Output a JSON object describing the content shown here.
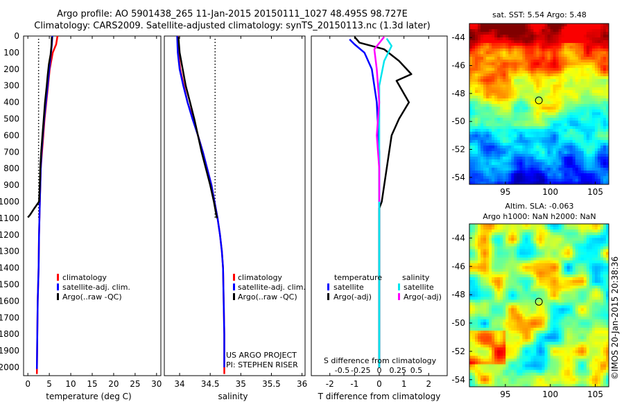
{
  "header": {
    "line1": "Argo profile: AO 5901438_265 11-Jan-2015 20150111_1027 48.495S 98.727E",
    "line2": "Climatology: CARS2009. Satellite-adjusted climatology: synTS_20150113.nc (1.3d later)"
  },
  "credit": "©IMOS 20-Jan-2015 20:38:36",
  "project_note": {
    "line1": "US ARGO PROJECT",
    "line2": "PI: STEPHEN RISER"
  },
  "depth_ticks": [
    0,
    100,
    200,
    300,
    400,
    500,
    600,
    700,
    800,
    900,
    1000,
    1100,
    1200,
    1300,
    1400,
    1500,
    1600,
    1700,
    1800,
    1900,
    2000
  ],
  "colors": {
    "climatology": "#ff0000",
    "satellite": "#0000ff",
    "argo": "#000000",
    "salinity_satellite": "#00e5ee",
    "salinity_argo": "#ff00ff"
  },
  "chart_data": [
    {
      "type": "line",
      "id": "temperature",
      "xlabel": "temperature (deg C)",
      "xlim": [
        -1,
        31
      ],
      "ylim": [
        2050,
        0
      ],
      "xticks": [
        0,
        5,
        10,
        15,
        20,
        25,
        30
      ],
      "xtick_labels": [
        "0",
        "5",
        "10",
        "15",
        "20",
        "25",
        "30"
      ],
      "reference_line": {
        "x": 2.5,
        "style": "dotted"
      },
      "legend": [
        "climatology",
        "satellite-adj. clim.",
        "Argo(..raw -QC)"
      ],
      "series": [
        {
          "name": "climatology",
          "color": "#ff0000",
          "points": [
            [
              6.9,
              0
            ],
            [
              6.6,
              50
            ],
            [
              5.8,
              100
            ],
            [
              5.1,
              200
            ],
            [
              4.7,
              300
            ],
            [
              4.3,
              400
            ],
            [
              3.9,
              500
            ],
            [
              3.6,
              600
            ],
            [
              3.3,
              700
            ],
            [
              3.0,
              800
            ],
            [
              2.8,
              1000
            ],
            [
              2.6,
              1200
            ],
            [
              2.5,
              1400
            ],
            [
              2.3,
              1600
            ],
            [
              2.2,
              1800
            ],
            [
              2.1,
              2040
            ]
          ]
        },
        {
          "name": "satellite-adj. clim.",
          "color": "#0000ff",
          "points": [
            [
              5.7,
              0
            ],
            [
              5.6,
              50
            ],
            [
              5.4,
              100
            ],
            [
              5.0,
              200
            ],
            [
              4.6,
              300
            ],
            [
              4.2,
              400
            ],
            [
              3.8,
              500
            ],
            [
              3.5,
              600
            ],
            [
              3.2,
              700
            ],
            [
              3.0,
              800
            ],
            [
              2.8,
              1000
            ],
            [
              2.6,
              1200
            ],
            [
              2.5,
              1400
            ],
            [
              2.3,
              1600
            ],
            [
              2.2,
              1800
            ],
            [
              2.1,
              2010
            ]
          ]
        },
        {
          "name": "Argo(..raw -QC)",
          "color": "#000000",
          "points": [
            [
              5.6,
              5
            ],
            [
              5.5,
              60
            ],
            [
              5.3,
              110
            ],
            [
              4.9,
              170
            ],
            [
              4.6,
              240
            ],
            [
              4.4,
              300
            ],
            [
              4.0,
              400
            ],
            [
              3.7,
              500
            ],
            [
              3.4,
              600
            ],
            [
              3.1,
              700
            ],
            [
              2.9,
              800
            ],
            [
              2.8,
              900
            ],
            [
              2.6,
              1000
            ],
            [
              1.5,
              1040
            ],
            [
              0.5,
              1080
            ],
            [
              0.0,
              1095
            ]
          ]
        }
      ]
    },
    {
      "type": "line",
      "id": "salinity",
      "xlabel": "salinity",
      "xlim": [
        33.75,
        36.05
      ],
      "ylim": [
        2050,
        0
      ],
      "xticks": [
        34,
        34.5,
        35,
        35.5,
        36
      ],
      "xtick_labels": [
        "34",
        "34.5",
        "35",
        "35.5",
        "36"
      ],
      "reference_line": {
        "x": 34.58,
        "style": "dotted"
      },
      "legend": [
        "climatology",
        "satellite-adj. clim.",
        "Argo(..raw -QC)"
      ],
      "series": [
        {
          "name": "climatology",
          "color": "#ff0000",
          "points": [
            [
              33.97,
              0
            ],
            [
              33.98,
              100
            ],
            [
              34.01,
              200
            ],
            [
              34.07,
              300
            ],
            [
              34.13,
              400
            ],
            [
              34.22,
              500
            ],
            [
              34.3,
              600
            ],
            [
              34.38,
              700
            ],
            [
              34.45,
              800
            ],
            [
              34.52,
              900
            ],
            [
              34.57,
              1000
            ],
            [
              34.62,
              1100
            ],
            [
              34.66,
              1200
            ],
            [
              34.69,
              1300
            ],
            [
              34.71,
              1400
            ],
            [
              34.72,
              1600
            ],
            [
              34.73,
              1800
            ],
            [
              34.73,
              2040
            ]
          ]
        },
        {
          "name": "satellite-adj. clim.",
          "color": "#0000ff",
          "points": [
            [
              33.96,
              0
            ],
            [
              33.97,
              100
            ],
            [
              34.0,
              200
            ],
            [
              34.06,
              300
            ],
            [
              34.13,
              400
            ],
            [
              34.21,
              500
            ],
            [
              34.3,
              600
            ],
            [
              34.38,
              700
            ],
            [
              34.45,
              800
            ],
            [
              34.52,
              900
            ],
            [
              34.57,
              1000
            ],
            [
              34.62,
              1100
            ],
            [
              34.66,
              1200
            ],
            [
              34.69,
              1300
            ],
            [
              34.71,
              1400
            ],
            [
              34.72,
              1600
            ],
            [
              34.73,
              1800
            ],
            [
              34.73,
              2000
            ]
          ]
        },
        {
          "name": "Argo(..raw -QC)",
          "color": "#000000",
          "points": [
            [
              33.98,
              5
            ],
            [
              34.0,
              100
            ],
            [
              34.05,
              200
            ],
            [
              34.1,
              300
            ],
            [
              34.17,
              400
            ],
            [
              34.24,
              500
            ],
            [
              34.3,
              600
            ],
            [
              34.36,
              700
            ],
            [
              34.43,
              800
            ],
            [
              34.5,
              900
            ],
            [
              34.56,
              1000
            ],
            [
              34.61,
              1100
            ]
          ]
        }
      ]
    },
    {
      "type": "line",
      "id": "difference",
      "xlabel": "T difference from climatology",
      "x2label": "S difference from climatology",
      "xlim": [
        -2.75,
        2.75
      ],
      "ylim": [
        2050,
        0
      ],
      "xticks": [
        -2,
        -1,
        0,
        1,
        2
      ],
      "xtick_labels": [
        "-2",
        "-1",
        "0",
        "1",
        "2"
      ],
      "x2ticks": [
        -1.5,
        -0.75,
        0,
        0.75,
        1.5
      ],
      "x2tick_labels": [
        "-0.5",
        "-0.25",
        "0",
        "0.25",
        "0.5"
      ],
      "legend_headers": [
        "temperature",
        "salinity"
      ],
      "legend": [
        "satellite",
        "Argo(-adj)",
        "satellite",
        "Argo(-adj)"
      ],
      "series": [
        {
          "name": "temperature satellite",
          "color": "#0000ff",
          "points": [
            [
              -1.2,
              20
            ],
            [
              -1.0,
              50
            ],
            [
              -0.6,
              100
            ],
            [
              -0.3,
              200
            ],
            [
              -0.1,
              400
            ],
            [
              0.0,
              700
            ],
            [
              0.0,
              1000
            ],
            [
              0.0,
              1500
            ],
            [
              0.0,
              2000
            ]
          ]
        },
        {
          "name": "temperature Argo(-adj)",
          "color": "#000000",
          "points": [
            [
              -1.0,
              5
            ],
            [
              -0.8,
              40
            ],
            [
              0.2,
              80
            ],
            [
              0.8,
              150
            ],
            [
              1.3,
              230
            ],
            [
              0.7,
              270
            ],
            [
              1.2,
              400
            ],
            [
              0.8,
              500
            ],
            [
              0.5,
              600
            ],
            [
              0.3,
              800
            ],
            [
              0.1,
              1000
            ],
            [
              0.0,
              1040
            ],
            [
              0.0,
              2000
            ]
          ]
        },
        {
          "name": "salinity satellite",
          "color": "#00e5ee",
          "points": [
            [
              0.3,
              15
            ],
            [
              0.5,
              60
            ],
            [
              0.2,
              150
            ],
            [
              0.0,
              300
            ],
            [
              0.0,
              600
            ],
            [
              0.0,
              1000
            ],
            [
              0.0,
              1500
            ],
            [
              0.0,
              2000
            ]
          ]
        },
        {
          "name": "salinity Argo(-adj)",
          "color": "#ff00ff",
          "points": [
            [
              0.2,
              5
            ],
            [
              -0.2,
              80
            ],
            [
              -0.1,
              200
            ],
            [
              0.0,
              400
            ],
            [
              -0.1,
              600
            ],
            [
              0.0,
              800
            ],
            [
              0.0,
              1000
            ]
          ]
        }
      ]
    },
    {
      "type": "heatmap",
      "id": "sst_map",
      "title": "sat. SST: 5.54  Argo: 5.48",
      "xlim": [
        91,
        106.5
      ],
      "ylim": [
        -54.5,
        -43
      ],
      "xticks": [
        95,
        100,
        105
      ],
      "yticks": [
        -44,
        -46,
        -48,
        -50,
        -52,
        -54
      ],
      "xtick_labels": [
        "95",
        "100",
        "105"
      ],
      "ytick_labels": [
        "-44",
        "-46",
        "-48",
        "-50",
        "-52",
        "-54"
      ],
      "marker": [
        98.727,
        -48.495
      ]
    },
    {
      "type": "heatmap",
      "id": "sla_map",
      "title": "Altim. SLA: -0.063",
      "subtitle": "Argo h1000: NaN  h2000: NaN",
      "xlim": [
        91,
        106.5
      ],
      "ylim": [
        -54.5,
        -43
      ],
      "xticks": [
        95,
        100,
        105
      ],
      "yticks": [
        -44,
        -46,
        -48,
        -50,
        -52,
        -54
      ],
      "xtick_labels": [
        "95",
        "100",
        "105"
      ],
      "ytick_labels": [
        "-44",
        "-46",
        "-48",
        "-50",
        "-52",
        "-54"
      ],
      "marker": [
        98.727,
        -48.495
      ]
    }
  ]
}
